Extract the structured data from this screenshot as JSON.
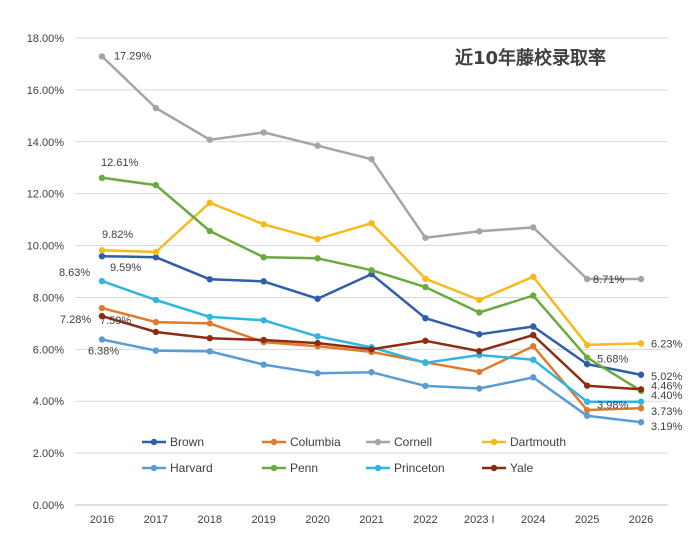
{
  "chart_data": {
    "type": "line",
    "title": "近10年藤校录取率",
    "xlabel": "",
    "ylabel": "",
    "x": [
      "2016",
      "2017",
      "2018",
      "2019",
      "2020",
      "2021",
      "2022",
      "2023 I",
      "2024",
      "2025",
      "2026"
    ],
    "ylim": [
      0,
      18
    ],
    "yticks": [
      "0.00%",
      "2.00%",
      "4.00%",
      "6.00%",
      "8.00%",
      "10.00%",
      "12.00%",
      "14.00%",
      "16.00%",
      "18.00%"
    ],
    "grid": true,
    "legend_position": "bottom-inside",
    "series": [
      {
        "name": "Brown",
        "color": "#2E5EAA",
        "values": [
          9.59,
          9.55,
          8.7,
          8.62,
          7.95,
          8.9,
          7.2,
          6.58,
          6.88,
          5.43,
          5.02
        ]
      },
      {
        "name": "Columbia",
        "color": "#E07B2E",
        "values": [
          7.59,
          7.05,
          7.0,
          6.28,
          6.12,
          5.9,
          5.5,
          5.13,
          6.12,
          3.66,
          3.73
        ]
      },
      {
        "name": "Cornell",
        "color": "#A5A5A5",
        "values": [
          17.29,
          15.3,
          14.08,
          14.36,
          13.85,
          13.33,
          10.3,
          10.55,
          10.7,
          8.71,
          8.71
        ]
      },
      {
        "name": "Dartmouth",
        "color": "#F5BA1E",
        "values": [
          9.82,
          9.75,
          11.65,
          10.82,
          10.25,
          10.86,
          8.72,
          7.9,
          8.8,
          6.17,
          6.23
        ]
      },
      {
        "name": "Harvard",
        "color": "#5B9BD5",
        "values": [
          6.38,
          5.95,
          5.92,
          5.41,
          5.08,
          5.12,
          4.59,
          4.49,
          4.92,
          3.44,
          3.19
        ]
      },
      {
        "name": "Penn",
        "color": "#6BAA3C",
        "values": [
          12.61,
          12.33,
          10.56,
          9.55,
          9.51,
          9.05,
          8.4,
          7.42,
          8.07,
          5.68,
          4.4
        ]
      },
      {
        "name": "Princeton",
        "color": "#2FB5E2",
        "values": [
          8.63,
          7.9,
          7.25,
          7.12,
          6.5,
          6.08,
          5.48,
          5.78,
          5.6,
          3.98,
          3.98
        ]
      },
      {
        "name": "Yale",
        "color": "#8B2C13",
        "values": [
          7.28,
          6.67,
          6.43,
          6.36,
          6.24,
          6.0,
          6.33,
          5.93,
          6.55,
          4.6,
          4.46
        ]
      }
    ],
    "annotations": [
      {
        "series": "Cornell",
        "index": 0,
        "text": "17.29%"
      },
      {
        "series": "Penn",
        "index": 0,
        "text": "12.61%"
      },
      {
        "series": "Dartmouth",
        "index": 0,
        "text": "9.82%"
      },
      {
        "series": "Brown",
        "index": 0,
        "text": "9.59%"
      },
      {
        "series": "Princeton",
        "index": 0,
        "text": "8.63%"
      },
      {
        "series": "Columbia",
        "index": 0,
        "text": "7.59%"
      },
      {
        "series": "Yale",
        "index": 0,
        "text": "7.28%"
      },
      {
        "series": "Harvard",
        "index": 0,
        "text": "6.38%"
      },
      {
        "series": "Cornell",
        "index": 10,
        "text": "8.71%"
      },
      {
        "series": "Dartmouth",
        "index": 10,
        "text": "6.23%"
      },
      {
        "series": "Penn",
        "index": 9,
        "text": "5.68%"
      },
      {
        "series": "Brown",
        "index": 10,
        "text": "5.02%"
      },
      {
        "series": "Yale",
        "index": 10,
        "text": "4.46%"
      },
      {
        "series": "Penn",
        "index": 10,
        "text": "4.40%"
      },
      {
        "series": "Princeton",
        "index": 9,
        "text": "3.98%"
      },
      {
        "series": "Columbia",
        "index": 10,
        "text": "3.73%"
      },
      {
        "series": "Harvard",
        "index": 10,
        "text": "3.19%"
      }
    ]
  }
}
